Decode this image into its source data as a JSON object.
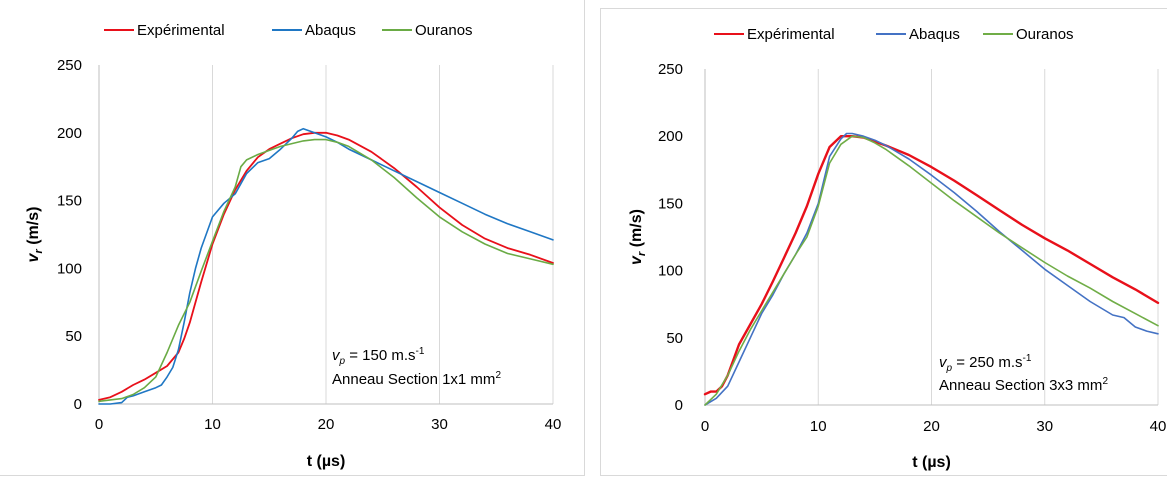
{
  "chart_data": [
    {
      "type": "line",
      "xlabel": "t (µs)",
      "ylabel": {
        "var": "v",
        "sub": "r",
        "unit": " (m/s)"
      },
      "xlim": [
        0,
        40
      ],
      "ylim": [
        0,
        250
      ],
      "xticks": [
        "0",
        "10",
        "20",
        "30",
        "40"
      ],
      "yticks": [
        "0",
        "50",
        "100",
        "150",
        "200",
        "250"
      ],
      "grid": "vertical",
      "legend": "top",
      "annotation": {
        "line1": {
          "var": "v",
          "sub": "p",
          "text": " = 150 m.s",
          "sup": "-1"
        },
        "line2": {
          "text": "Anneau Section 1x1 mm",
          "sup": "2"
        }
      },
      "series": [
        {
          "name": "Expérimental",
          "color": "#e8101a",
          "width": 1.8,
          "x": [
            0,
            1,
            2,
            3,
            4,
            5,
            6,
            7,
            7.5,
            8,
            8.5,
            9,
            10,
            11,
            12,
            13,
            14,
            15,
            16,
            17,
            18,
            19,
            20,
            21,
            22,
            24,
            26,
            28,
            30,
            32,
            34,
            36,
            38,
            40
          ],
          "y": [
            3,
            5,
            9,
            14,
            18,
            23,
            28,
            38,
            48,
            60,
            75,
            90,
            118,
            140,
            158,
            172,
            182,
            188,
            192,
            196,
            199,
            200,
            200,
            198,
            195,
            186,
            174,
            160,
            145,
            132,
            122,
            115,
            110,
            104
          ]
        },
        {
          "name": "Abaqus",
          "color": "#1f77c4",
          "width": 1.6,
          "x": [
            0,
            1,
            2,
            2.5,
            3,
            4,
            5,
            5.5,
            6,
            6.5,
            7,
            7.5,
            8,
            8.5,
            9,
            10,
            11,
            12,
            13,
            14,
            15,
            16,
            17,
            17.5,
            18,
            19,
            20,
            21,
            22,
            24,
            26,
            28,
            30,
            32,
            34,
            36,
            38,
            40
          ],
          "y": [
            0,
            0,
            1,
            5,
            6,
            9,
            12,
            14,
            20,
            27,
            40,
            60,
            82,
            100,
            115,
            138,
            148,
            155,
            170,
            178,
            181,
            188,
            196,
            201,
            203,
            200,
            197,
            193,
            188,
            180,
            172,
            164,
            156,
            148,
            140,
            133,
            127,
            121
          ]
        },
        {
          "name": "Ouranos",
          "color": "#6aab45",
          "width": 1.6,
          "x": [
            0,
            1,
            2,
            3,
            4,
            5,
            6,
            7,
            8,
            9,
            10,
            11,
            12,
            12.5,
            13,
            14,
            15,
            16,
            17,
            18,
            19,
            20,
            21,
            22,
            24,
            26,
            28,
            30,
            32,
            34,
            36,
            38,
            40
          ],
          "y": [
            2,
            3,
            4,
            7,
            12,
            20,
            38,
            58,
            75,
            98,
            120,
            142,
            160,
            175,
            180,
            184,
            187,
            190,
            192,
            194,
            195,
            195,
            193,
            190,
            180,
            167,
            152,
            138,
            127,
            118,
            111,
            107,
            103
          ]
        }
      ]
    },
    {
      "type": "line",
      "xlabel": "t (µs)",
      "ylabel": {
        "var": "v",
        "sub": "r",
        "unit": " (m/s)"
      },
      "xlim": [
        0,
        40
      ],
      "ylim": [
        0,
        250
      ],
      "xticks": [
        "0",
        "10",
        "20",
        "30",
        "40"
      ],
      "yticks": [
        "0",
        "50",
        "100",
        "150",
        "200",
        "250"
      ],
      "grid": "vertical",
      "legend": "top",
      "annotation": {
        "line1": {
          "var": "v",
          "sub": "p",
          "text": " = 250 m.s",
          "sup": "-1"
        },
        "line2": {
          "text": "Anneau Section 3x3 mm",
          "sup": "2"
        }
      },
      "series": [
        {
          "name": "Expérimental",
          "color": "#e8101a",
          "width": 2.4,
          "x": [
            0,
            0.5,
            1,
            1.5,
            2,
            3,
            4,
            5,
            6,
            7,
            8,
            9,
            10,
            11,
            12,
            13,
            14,
            15,
            16,
            18,
            20,
            22,
            24,
            26,
            28,
            30,
            32,
            34,
            36,
            38,
            40
          ],
          "y": [
            8,
            10,
            10,
            14,
            22,
            45,
            60,
            75,
            92,
            110,
            128,
            148,
            172,
            192,
            200,
            200,
            199,
            196,
            193,
            186,
            177,
            167,
            156,
            145,
            134,
            124,
            115,
            105,
            95,
            86,
            76
          ]
        },
        {
          "name": "Abaqus",
          "color": "#4472c4",
          "width": 1.6,
          "x": [
            0,
            1,
            2,
            3,
            4,
            5,
            6,
            7,
            8,
            9,
            10,
            11,
            12,
            12.5,
            13,
            14,
            15,
            16,
            18,
            20,
            22,
            24,
            26,
            28,
            30,
            32,
            34,
            36,
            37,
            38,
            39,
            40
          ],
          "y": [
            0,
            5,
            14,
            32,
            50,
            68,
            82,
            98,
            112,
            128,
            150,
            185,
            198,
            202,
            202,
            200,
            197,
            193,
            183,
            171,
            158,
            144,
            129,
            115,
            101,
            89,
            77,
            67,
            65,
            58,
            55,
            53
          ]
        },
        {
          "name": "Ouranos",
          "color": "#70ad47",
          "width": 1.6,
          "x": [
            0,
            1,
            2,
            3,
            4,
            5,
            6,
            7,
            8,
            9,
            10,
            11,
            12,
            13,
            14,
            15,
            16,
            18,
            20,
            22,
            24,
            26,
            28,
            30,
            32,
            34,
            36,
            38,
            40
          ],
          "y": [
            0,
            8,
            22,
            40,
            56,
            70,
            84,
            98,
            112,
            125,
            148,
            180,
            194,
            200,
            199,
            195,
            190,
            178,
            165,
            152,
            140,
            128,
            117,
            106,
            96,
            87,
            77,
            68,
            59
          ]
        }
      ]
    }
  ]
}
